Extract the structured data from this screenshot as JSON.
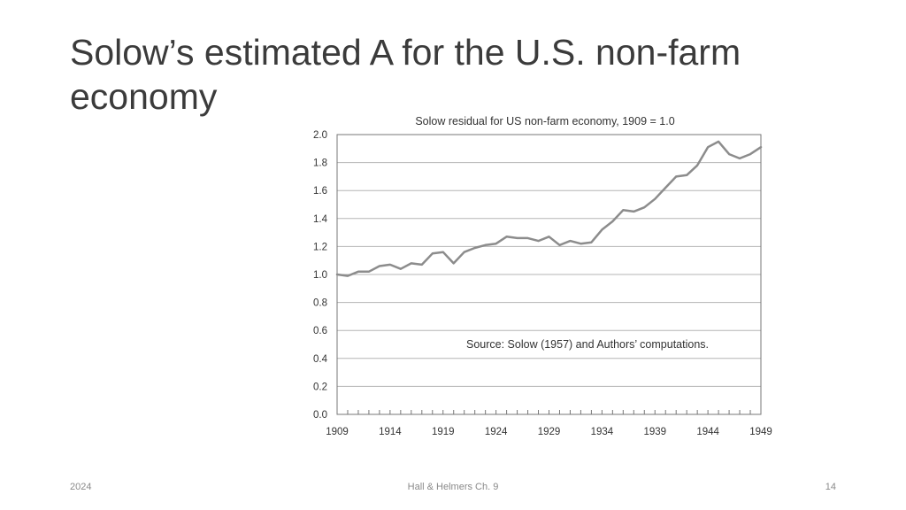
{
  "slide": {
    "title_line1": "Solow’s estimated A for the U.S. non-farm",
    "title_line2": "economy"
  },
  "footer": {
    "date": "2024",
    "source": "Hall & Helmers Ch. 9",
    "page": "14"
  },
  "chart_data": {
    "type": "line",
    "title": "Solow residual for US non-farm economy, 1909 = 1.0",
    "annotation": "Source: Solow (1957) and Authors’ computations.",
    "xlabel": "",
    "ylabel": "",
    "xlim": [
      1909,
      1949
    ],
    "ylim": [
      0.0,
      2.0
    ],
    "grid": true,
    "line_color": "#8c8c8c",
    "x_ticks": [
      1909,
      1914,
      1919,
      1924,
      1929,
      1934,
      1939,
      1944,
      1949
    ],
    "y_ticks": [
      "0.0",
      "0.2",
      "0.4",
      "0.6",
      "0.8",
      "1.0",
      "1.2",
      "1.4",
      "1.6",
      "1.8",
      "2.0"
    ],
    "series": [
      {
        "name": "Solow residual",
        "x": [
          1909,
          1910,
          1911,
          1912,
          1913,
          1914,
          1915,
          1916,
          1917,
          1918,
          1919,
          1920,
          1921,
          1922,
          1923,
          1924,
          1925,
          1926,
          1927,
          1928,
          1929,
          1930,
          1931,
          1932,
          1933,
          1934,
          1935,
          1936,
          1937,
          1938,
          1939,
          1940,
          1941,
          1942,
          1943,
          1944,
          1945,
          1946,
          1947,
          1948,
          1949
        ],
        "values": [
          1.0,
          0.99,
          1.02,
          1.02,
          1.06,
          1.07,
          1.04,
          1.08,
          1.07,
          1.15,
          1.16,
          1.08,
          1.16,
          1.19,
          1.21,
          1.22,
          1.27,
          1.26,
          1.26,
          1.24,
          1.27,
          1.21,
          1.24,
          1.22,
          1.23,
          1.32,
          1.38,
          1.46,
          1.45,
          1.48,
          1.54,
          1.62,
          1.7,
          1.71,
          1.78,
          1.91,
          1.95,
          1.86,
          1.83,
          1.86,
          1.91
        ]
      }
    ]
  }
}
